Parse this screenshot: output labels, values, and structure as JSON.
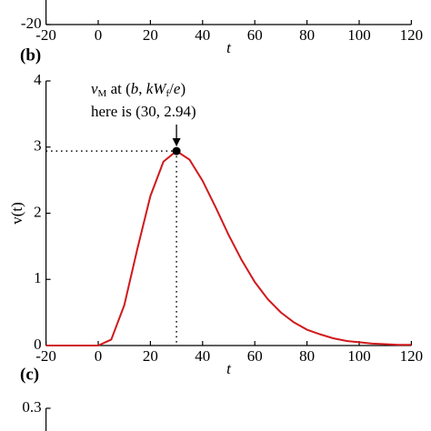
{
  "chart_data": [
    {
      "type": "line",
      "xlabel": "t",
      "xlim": [
        -20,
        120
      ],
      "xticks": [
        -20,
        0,
        20,
        40,
        60,
        80,
        100,
        120
      ],
      "ylim": [
        -20,
        20
      ],
      "yticks": [
        -20
      ]
    },
    {
      "type": "line",
      "panel_label": "(b)",
      "xlabel": "t",
      "ylabel": "v(t)",
      "xlim": [
        -20,
        120
      ],
      "xticks": [
        -20,
        0,
        20,
        40,
        60,
        80,
        100,
        120
      ],
      "ylim": [
        0,
        4
      ],
      "yticks": [
        0,
        1,
        2,
        3,
        4
      ],
      "x": [
        -20,
        -15,
        -10,
        -5,
        0,
        5,
        10,
        15,
        20,
        25,
        30,
        35,
        40,
        45,
        50,
        55,
        60,
        65,
        70,
        75,
        80,
        85,
        90,
        95,
        100,
        105,
        110,
        115,
        120
      ],
      "series": [
        {
          "color": "#d0191c",
          "values": [
            0,
            0,
            0,
            0,
            0,
            0.09,
            0.61,
            1.46,
            2.26,
            2.78,
            2.94,
            2.81,
            2.49,
            2.09,
            1.67,
            1.29,
            0.96,
            0.7,
            0.5,
            0.35,
            0.24,
            0.17,
            0.11,
            0.07,
            0.05,
            0.03,
            0.02,
            0.01,
            0.01
          ]
        }
      ],
      "peak": {
        "x": 30,
        "y": 2.94
      },
      "annotation": {
        "line1": [
          "v",
          "M",
          " at (",
          "b",
          ", ",
          "kW",
          "f",
          "/",
          "e",
          ")"
        ],
        "line2": "here is (30, 2.94)"
      }
    },
    {
      "type": "line",
      "panel_label": "(c)",
      "ylim": [
        0,
        0.3
      ],
      "yticks": [
        0.3
      ]
    }
  ]
}
